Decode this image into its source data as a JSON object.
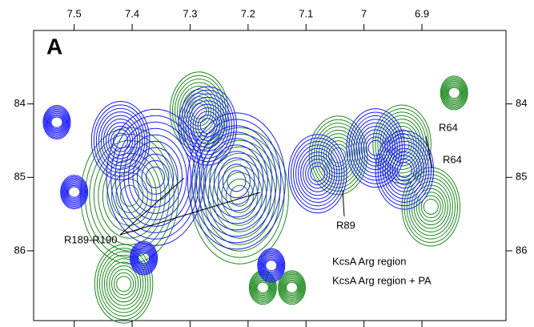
{
  "chart_data": {
    "type": "contour",
    "panel_label": "A",
    "xlim": [
      7.57,
      6.755
    ],
    "ylim": [
      83.0,
      86.95
    ],
    "xticks": [
      7.5,
      7.4,
      7.3,
      7.2,
      7.1,
      7.0,
      6.9
    ],
    "yticks": [
      84,
      85,
      86
    ],
    "series": [
      {
        "name": "KcsA Arg region",
        "color": "#1a1aff",
        "x": [
          7.36,
          7.22,
          7.42,
          7.27,
          7.08,
          6.98,
          6.93,
          7.53,
          7.5,
          7.16,
          7.38
        ],
        "values": [
          85.0,
          85.05,
          84.5,
          84.3,
          84.95,
          84.6,
          84.9,
          84.25,
          85.2,
          86.2,
          86.1
        ]
      },
      {
        "name": "KcsA Arg region + PA",
        "color": "#1e8a1e",
        "x": [
          7.41,
          7.22,
          7.05,
          6.94,
          6.89,
          7.29,
          7.42,
          6.85,
          7.18,
          7.13
        ],
        "values": [
          85.25,
          85.25,
          84.7,
          84.55,
          85.4,
          84.1,
          86.45,
          83.85,
          86.5,
          86.5
        ]
      }
    ],
    "annotations": [
      "R64",
      "R64",
      "R89",
      "R189-R190"
    ]
  }
}
